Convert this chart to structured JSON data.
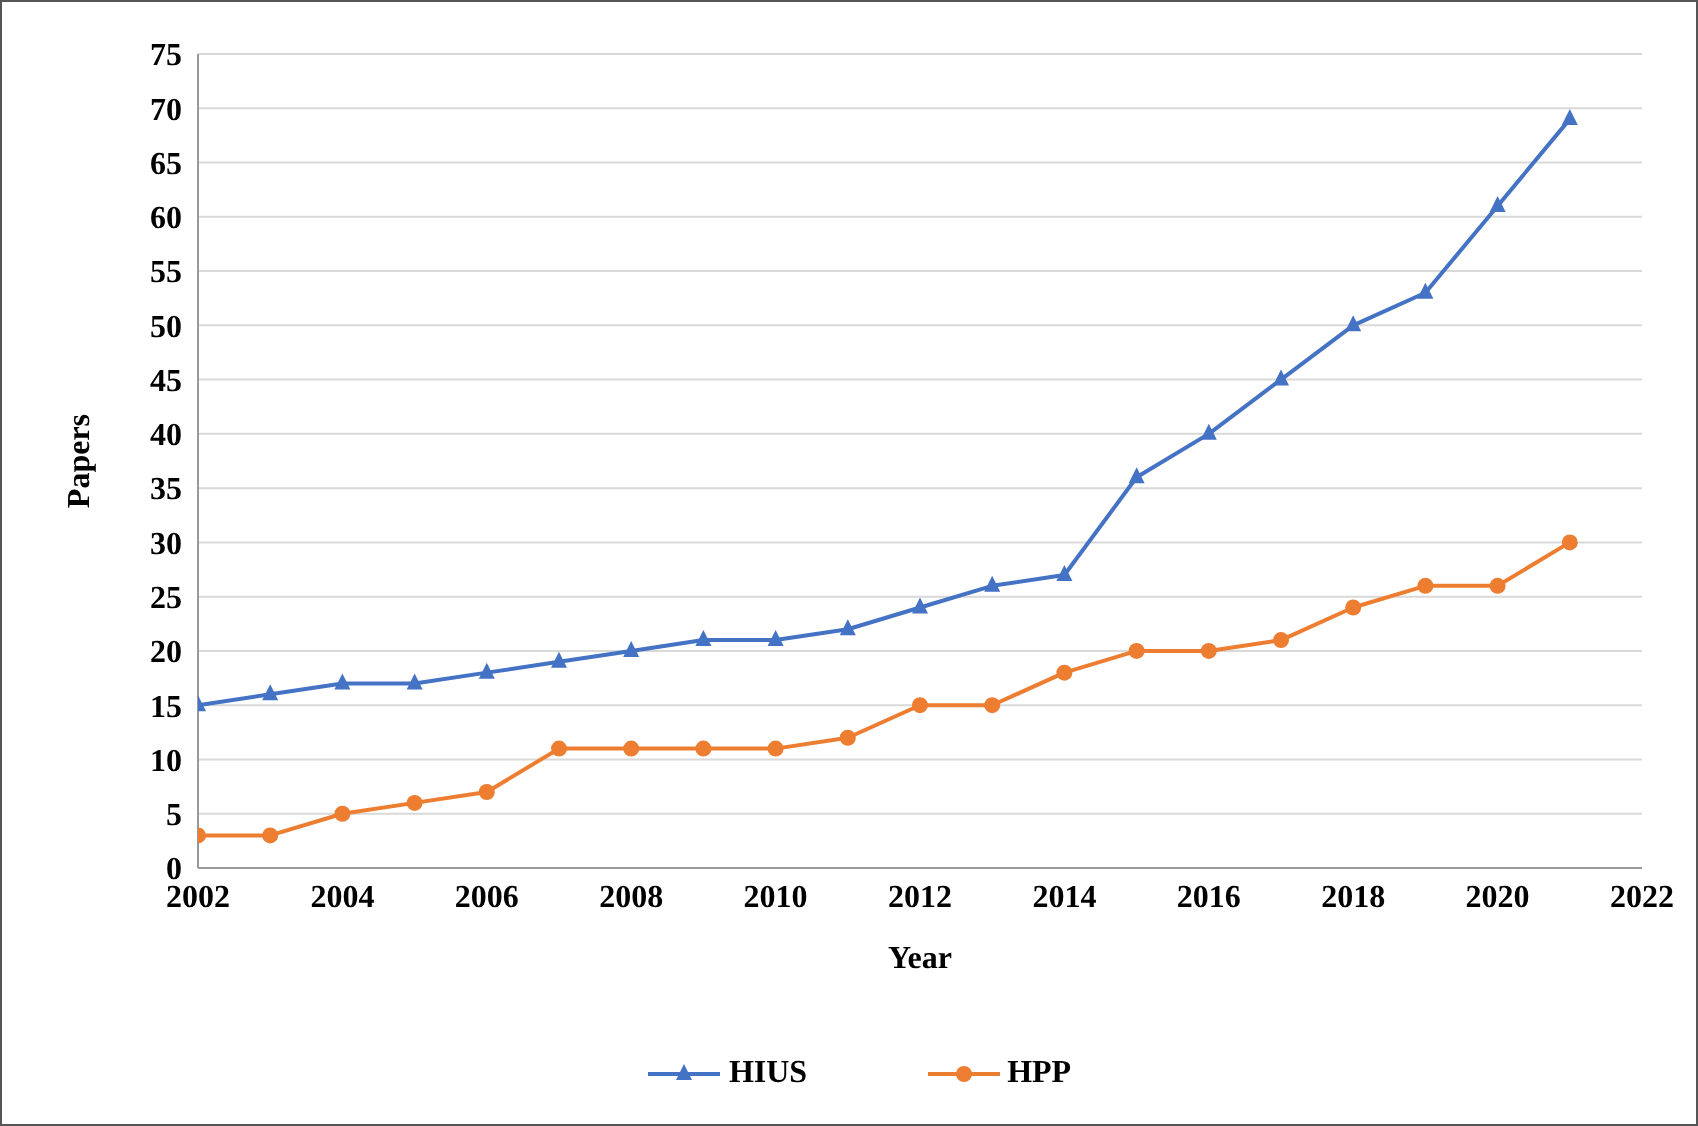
{
  "chart_data": {
    "type": "line",
    "xlabel": "Year",
    "ylabel": "Papers",
    "x": [
      2002,
      2003,
      2004,
      2005,
      2006,
      2007,
      2008,
      2009,
      2010,
      2011,
      2012,
      2013,
      2014,
      2015,
      2016,
      2017,
      2018,
      2019,
      2020,
      2021
    ],
    "series": [
      {
        "name": "HIUS",
        "color": "#4472c4",
        "marker": "triangle",
        "values": [
          15,
          16,
          17,
          17,
          18,
          19,
          20,
          21,
          21,
          22,
          24,
          26,
          27,
          36,
          40,
          45,
          50,
          53,
          61,
          69
        ]
      },
      {
        "name": "HPP",
        "color": "#ed7d31",
        "marker": "circle",
        "values": [
          3,
          3,
          5,
          6,
          7,
          11,
          11,
          11,
          11,
          12,
          15,
          15,
          18,
          20,
          20,
          21,
          24,
          26,
          26,
          30
        ]
      }
    ],
    "xlim": [
      2002,
      2022
    ],
    "xticks": [
      2002,
      2004,
      2006,
      2008,
      2010,
      2012,
      2014,
      2016,
      2018,
      2020,
      2022
    ],
    "ylim": [
      0,
      75
    ],
    "yticks": [
      0,
      5,
      10,
      15,
      20,
      25,
      30,
      35,
      40,
      45,
      50,
      55,
      60,
      65,
      70,
      75
    ],
    "grid": "y",
    "legend": "bottom",
    "line_style": "solid"
  }
}
